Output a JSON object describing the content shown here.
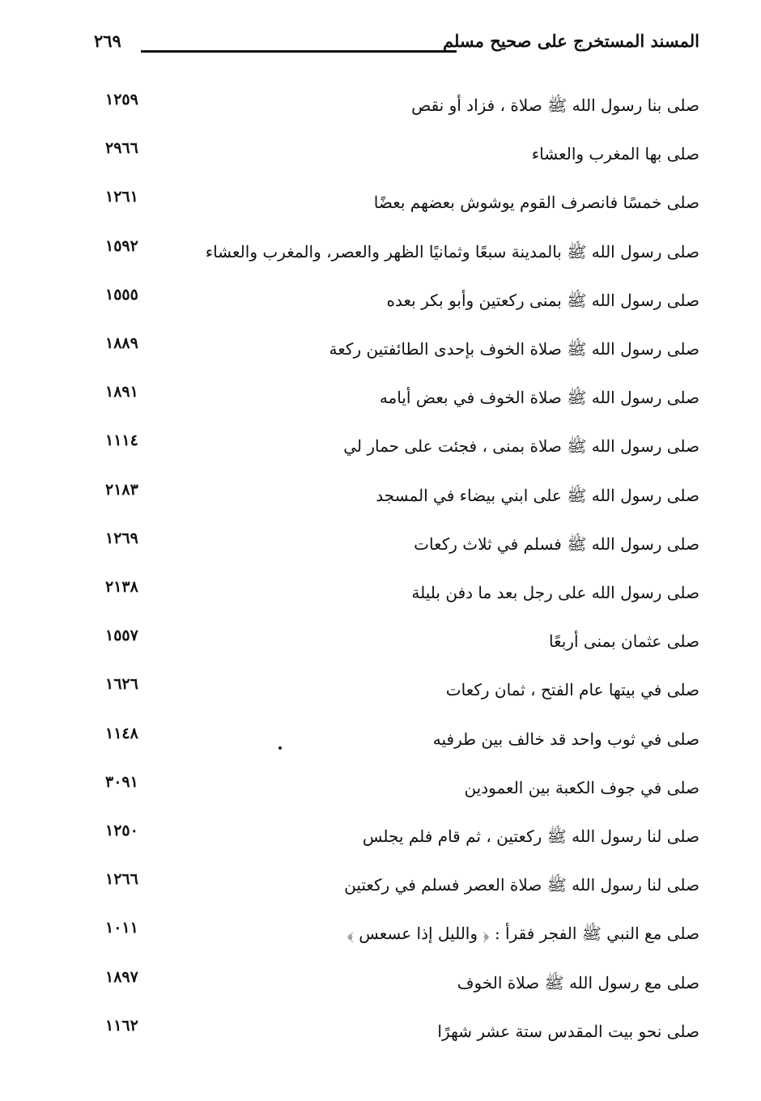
{
  "header": {
    "title": "المسند المستخرج على صحيح مسلم",
    "page_number": "٢٦٩"
  },
  "entries": [
    {
      "text": "صلى بنا رسول الله ﷺ صلاة ، فزاد أو نقص",
      "ref": "١٢٥٩"
    },
    {
      "text": "صلى بها المغرب والعشاء",
      "ref": "٢٩٦٦"
    },
    {
      "text": "صلى خمسًا فانصرف القوم يوشوش بعضهم بعضًا",
      "ref": "١٢٦١"
    },
    {
      "text": "صلى رسول الله ﷺ بالمدينة سبعًا وثمانيًا الظهر والعصر، والمغرب والعشاء",
      "ref": "١٥٩٢"
    },
    {
      "text": "صلى رسول الله ﷺ بمنى ركعتين وأبو بكر بعده",
      "ref": "١٥٥٥"
    },
    {
      "text": "صلى رسول الله ﷺ صلاة الخوف بإحدى الطائفتين ركعة",
      "ref": "١٨٨٩"
    },
    {
      "text": "صلى رسول الله ﷺ صلاة الخوف في بعض أيامه",
      "ref": "١٨٩١"
    },
    {
      "text": "صلى رسول الله ﷺ صلاة بمنى ، فجئت على حمار لي",
      "ref": "١١١٤"
    },
    {
      "text": "صلى رسول الله ﷺ على ابني بيضاء في المسجد",
      "ref": "٢١٨٣"
    },
    {
      "text": "صلى رسول الله ﷺ فسلم في ثلاث ركعات",
      "ref": "١٢٦٩"
    },
    {
      "text": "صلى رسول الله على رجل بعد ما دفن بليلة",
      "ref": "٢١٣٨"
    },
    {
      "text": "صلى عثمان بمنى أربعًا",
      "ref": "١٥٥٧"
    },
    {
      "text": "صلى في بيتها عام الفتح ، ثمان ركعات",
      "ref": "١٦٢٦"
    },
    {
      "text": "صلى في ثوب واحد قد خالف بين طرفيه",
      "ref": "١١٤٨"
    },
    {
      "text": "صلى في جوف الكعبة بين العمودين",
      "ref": "٣٠٩١"
    },
    {
      "text": "صلى لنا رسول الله ﷺ ركعتين ، ثم قام فلم يجلس",
      "ref": "١٢٥٠"
    },
    {
      "text": "صلى لنا رسول الله ﷺ صلاة العصر فسلم في ركعتين",
      "ref": "١٢٦٦"
    },
    {
      "text": "صلى مع النبي ﷺ الفجر فقرأ : ﴿ والليل إذا عسعس ﴾",
      "ref": "١٠١١"
    },
    {
      "text": "صلى مع رسول الله ﷺ صلاة الخوف",
      "ref": "١٨٩٧"
    },
    {
      "text": "صلى نحو بيت المقدس ستة عشر شهرًا",
      "ref": "١١٦٢"
    }
  ]
}
